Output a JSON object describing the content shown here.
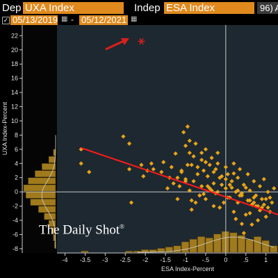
{
  "toolbar": {
    "dep_label": "Dep",
    "dep_value": "UXA Index",
    "indep_label": "Indep",
    "indep_value": "ESA Index",
    "right_button": "96) A",
    "start_date": "05/13/2019",
    "end_date": "05/12/2021",
    "date_separator": "-"
  },
  "watermark": "The Daily Shot",
  "watermark_mark": "®",
  "colors": {
    "background": "#1e2830",
    "points": "#e8a418",
    "histogram": "#a07a1c",
    "regression_line": "#ff1a1a",
    "arrow": "#d8201c",
    "toolbar_field": "#e08a1e"
  },
  "chart_data": {
    "type": "scatter",
    "xlabel": "ESA Index-Percent",
    "ylabel": "UXA Index-Percent",
    "xlim": [
      -4.2,
      1.3
    ],
    "ylim": [
      -8.6,
      23.5
    ],
    "xticks": [
      -4,
      -3.5,
      -3,
      -2.5,
      -2,
      -1.5,
      -1,
      -0.5,
      0,
      0.5,
      1,
      1.5
    ],
    "xtick_labels": [
      "-4",
      "-3.5",
      "-3",
      "-2.5",
      "-2",
      "-1.5",
      "-1",
      "-.5",
      "0",
      ".5",
      "1",
      "1.5"
    ],
    "yticks": [
      -8,
      -6,
      -4,
      -2,
      0,
      2,
      4,
      6,
      8,
      10,
      12,
      14,
      16,
      18,
      20,
      22
    ],
    "ytick_labels": [
      "-8",
      "-6",
      "-4",
      "-2",
      "0",
      "2",
      "4",
      "6",
      "8",
      "10",
      "12",
      "14",
      "16",
      "18",
      "20",
      "22"
    ],
    "grid": false,
    "legend": "none",
    "highlighted_point": {
      "x": -2.1,
      "y": 21.2,
      "marker": "asterisk"
    },
    "regression_line": {
      "x": [
        -3.6,
        1.3
      ],
      "y": [
        6.2,
        -3.2
      ]
    },
    "points": {
      "x": [
        -3.6,
        -3.6,
        -3.4,
        -2.55,
        -2.4,
        -2.35,
        -2.1,
        -2.05,
        -1.85,
        -1.8,
        -1.6,
        -1.55,
        -1.45,
        -1.4,
        -1.35,
        -1.3,
        -1.25,
        -1.2,
        -1.15,
        -1.1,
        -1.05,
        -1.0,
        -0.95,
        -0.9,
        -0.9,
        -0.85,
        -0.85,
        -0.8,
        -0.75,
        -0.7,
        -0.65,
        -0.6,
        -0.6,
        -0.55,
        -0.5,
        -0.5,
        -0.45,
        -0.4,
        -0.35,
        -0.3,
        -0.3,
        -0.25,
        -0.2,
        -0.2,
        -0.15,
        -0.1,
        -0.05,
        0.0,
        0.0,
        0.05,
        0.1,
        0.15,
        0.2,
        0.2,
        0.25,
        0.3,
        0.3,
        0.35,
        0.4,
        0.45,
        0.5,
        0.55,
        0.6,
        0.65,
        0.7,
        0.75,
        0.8,
        0.85,
        0.9,
        0.95,
        1.0,
        1.05,
        1.1,
        1.15,
        1.2,
        -1.0,
        -0.9,
        -0.8,
        -0.7,
        -0.6,
        -0.5,
        -0.4,
        -0.3,
        -0.2,
        -0.1,
        0.0,
        0.1,
        0.2,
        0.3,
        0.4,
        0.5,
        0.6,
        0.7,
        0.8,
        0.9,
        1.0,
        -1.2,
        -1.0,
        -0.85,
        -0.65,
        -0.45,
        -0.25,
        0.15,
        0.35,
        0.55,
        0.75,
        0.95,
        1.1,
        -0.75,
        -0.55,
        -0.35,
        -0.15,
        0.05,
        0.25,
        0.45,
        0.65,
        0.85,
        1.05,
        -2.4,
        -1.95,
        -0.95,
        -0.5,
        0.4,
        0.6,
        0.7,
        -1.1
      ],
      "y": [
        6.0,
        4.0,
        2.8,
        7.8,
        6.8,
        -1.5,
        3.8,
        2.2,
        4.0,
        3.2,
        2.8,
        4.2,
        0.5,
        2.0,
        3.5,
        1.2,
        5.4,
        2.0,
        0.8,
        3.0,
        8.4,
        1.8,
        9.2,
        5.5,
        0.2,
        3.8,
        -2.5,
        1.5,
        6.8,
        2.5,
        -0.5,
        4.5,
        0.8,
        3.0,
        6.0,
        -1.0,
        2.2,
        0.5,
        4.8,
        1.2,
        -2.0,
        3.2,
        0.0,
        5.5,
        2.0,
        1.0,
        -1.5,
        3.5,
        0.5,
        2.5,
        -0.8,
        1.5,
        4.0,
        -2.8,
        0.0,
        2.0,
        -1.5,
        3.2,
        -0.5,
        1.0,
        -3.2,
        2.5,
        0.2,
        -1.8,
        1.5,
        -0.5,
        -4.0,
        0.8,
        -2.2,
        1.8,
        -1.0,
        0.0,
        -2.8,
        -1.5,
        0.5,
        6.5,
        7.2,
        5.0,
        3.5,
        5.5,
        4.2,
        3.8,
        2.8,
        4.0,
        2.2,
        1.8,
        1.0,
        2.6,
        0.2,
        -0.2,
        0.6,
        -1.2,
        -0.8,
        -2.0,
        -1.0,
        -3.5,
        -1.0,
        1.5,
        -1.2,
        -0.5,
        0.8,
        -0.2,
        0.6,
        -0.5,
        -1.2,
        -2.0,
        -1.8,
        -0.8,
        -1.5,
        -0.3,
        0.2,
        -2.2,
        -0.8,
        -3.8,
        -5.8,
        -4.6,
        -2.6,
        -2.2,
        3.2,
        3.0,
        3.8,
        4.2,
        -4.5,
        -3.0,
        -1.5,
        2.8
      ]
    },
    "y_histogram": {
      "bins": [
        -8,
        -7,
        -6,
        -5,
        -4,
        -3,
        -2,
        -1,
        0,
        1,
        2,
        3,
        4,
        5
      ],
      "counts": [
        1,
        2,
        3,
        6,
        10,
        15,
        22,
        26,
        28,
        24,
        18,
        12,
        6,
        2
      ]
    },
    "x_histogram": {
      "bins": [
        -3.6,
        -2.5,
        -2.3,
        -2.1,
        -1.9,
        -1.7,
        -1.5,
        -1.3,
        -1.1,
        -0.9,
        -0.7,
        -0.5,
        -0.3,
        -0.1,
        0.1,
        0.3,
        0.5,
        0.7,
        0.9,
        1.1
      ],
      "counts": [
        1,
        1,
        1,
        2,
        2,
        3,
        4,
        5,
        8,
        10,
        12,
        11,
        14,
        16,
        15,
        13,
        10,
        12,
        9,
        5
      ]
    }
  }
}
